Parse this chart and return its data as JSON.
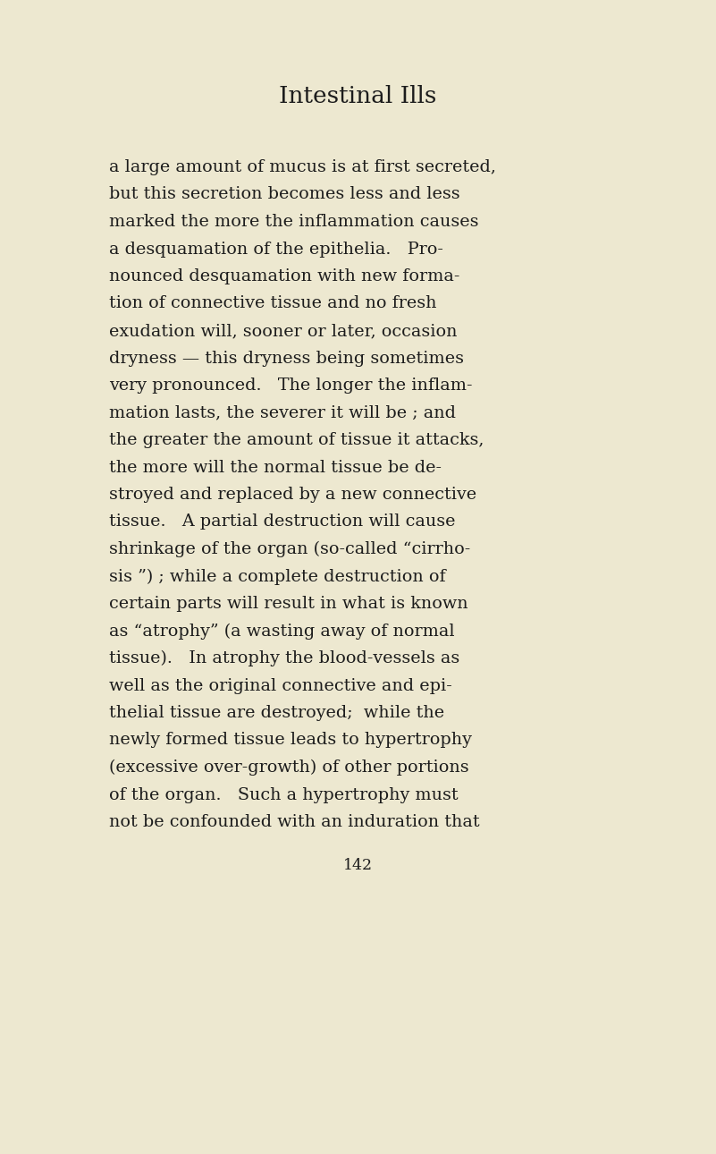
{
  "background_color": "#ede8d0",
  "title": "Intestinal Ills",
  "title_fontsize": 19,
  "text_color": "#1c1c1c",
  "page_number": "142",
  "body_fontsize": 13.8,
  "page_num_fontsize": 12.5,
  "lines": [
    "a large amount of mucus is at first secreted,",
    "but this secretion becomes less and less",
    "marked the more the inflammation causes",
    "a desquamation of the epithelia.   Pro-",
    "nounced desquamation with new forma-",
    "tion of connective tissue and no fresh",
    "exudation will, sooner or later, occasion",
    "dryness — this dryness being sometimes",
    "very pronounced.   The longer the inflam-",
    "mation lasts, the severer it will be ; and",
    "the greater the amount of tissue it attacks,",
    "the more will the normal tissue be de-",
    "stroyed and replaced by a new connective",
    "tissue.   A partial destruction will cause",
    "shrinkage of the organ (so-called “cirrho-",
    "sis ”) ; while a complete destruction of",
    "certain parts will result in what is known",
    "as “atrophy” (a wasting away of normal",
    "tissue).   In atrophy the blood-vessels as",
    "well as the original connective and epi-",
    "thelial tissue are destroyed;  while the",
    "newly formed tissue leads to hypertrophy",
    "(excessive over-growth) of other portions",
    "of the organ.   Such a hypertrophy must",
    "not be confounded with an induration that"
  ]
}
